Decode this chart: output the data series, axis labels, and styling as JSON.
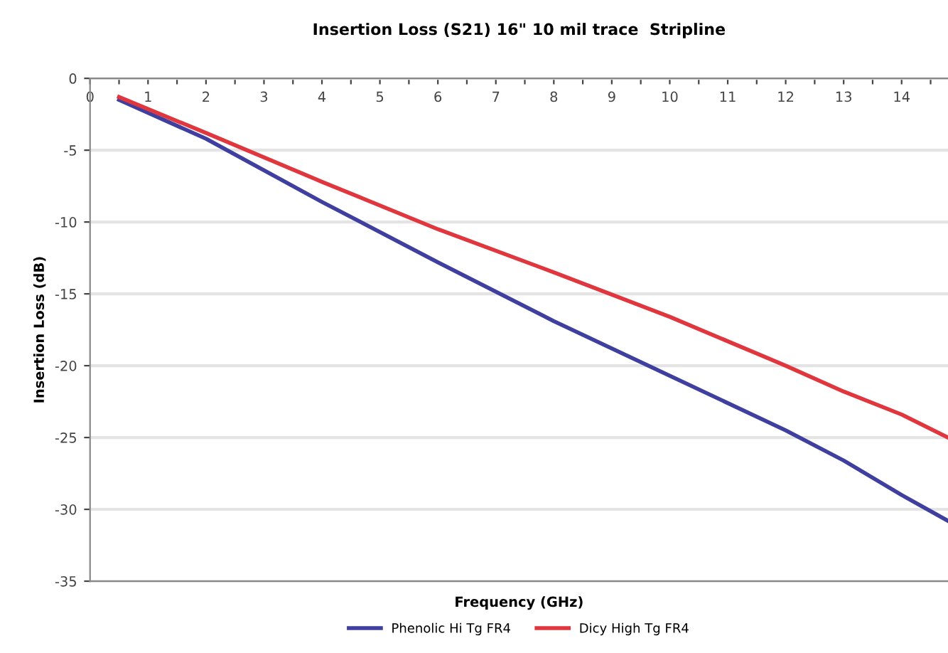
{
  "chart_data": {
    "type": "line",
    "title": "Insertion Loss (S21) 16\" 10 mil trace  Stripline",
    "xlabel": "Frequency (GHz)",
    "ylabel": "Insertion Loss (dB)",
    "xlim": [
      0,
      14.8
    ],
    "ylim": [
      -35,
      0
    ],
    "xticks": [
      0,
      {
        "value": 0.5,
        "label": null
      },
      1,
      {
        "value": 1.5,
        "label": null
      },
      2,
      {
        "value": 2.5,
        "label": null
      },
      3,
      {
        "value": 3.5,
        "label": null
      },
      4,
      {
        "value": 4.5,
        "label": null
      },
      5,
      {
        "value": 5.5,
        "label": null
      },
      6,
      {
        "value": 6.5,
        "label": null
      },
      7,
      {
        "value": 7.5,
        "label": null
      },
      8,
      {
        "value": 8.5,
        "label": null
      },
      9,
      {
        "value": 9.5,
        "label": null
      },
      10,
      {
        "value": 10.5,
        "label": null
      },
      11,
      {
        "value": 11.5,
        "label": null
      },
      12,
      {
        "value": 12.5,
        "label": null
      },
      13,
      {
        "value": 13.5,
        "label": null
      },
      14,
      {
        "value": 14.5,
        "label": null
      }
    ],
    "yticks": [
      0,
      -5,
      -10,
      -15,
      -20,
      -25,
      -30,
      -35
    ],
    "grid": "y",
    "legend": "bottom",
    "marker": "none",
    "line_style": "solid",
    "x": [
      0.5,
      2,
      4,
      6,
      8,
      10,
      12,
      13,
      14,
      14.8
    ],
    "series": [
      {
        "name": "Phenolic Hi Tg FR4",
        "color": "#3f3f9f",
        "values": [
          -1.5,
          -4.2,
          -8.6,
          -12.8,
          -16.9,
          -20.7,
          -24.5,
          -26.6,
          -29.0,
          -30.8
        ]
      },
      {
        "name": "Dicy High Tg FR4",
        "color": "#e0373f",
        "values": [
          -1.3,
          -3.8,
          -7.2,
          -10.5,
          -13.5,
          -16.6,
          -20.0,
          -21.8,
          -23.4,
          -25.0
        ]
      }
    ]
  }
}
